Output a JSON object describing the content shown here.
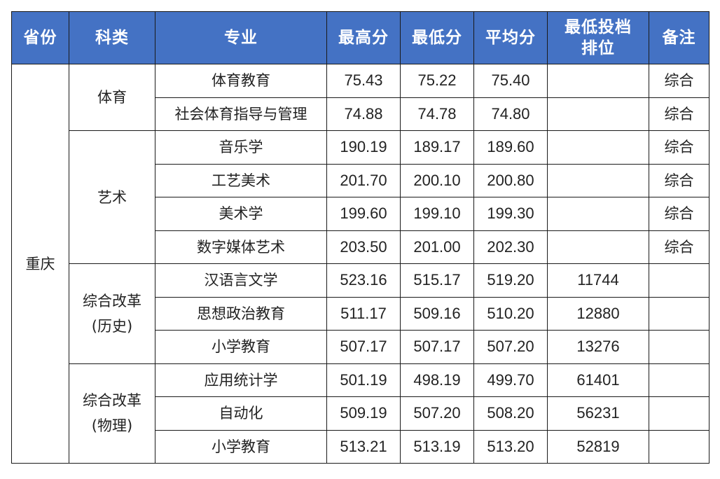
{
  "headers": [
    "省份",
    "科类",
    "专业",
    "最高分",
    "最低分",
    "平均分",
    "最低投档排位",
    "备注"
  ],
  "province": "重庆",
  "groups": [
    {
      "category": "体育",
      "rows": [
        {
          "major": "体育教育",
          "max": "75.43",
          "min": "75.22",
          "avg": "75.40",
          "rank": "",
          "note": "综合"
        },
        {
          "major": "社会体育指导与管理",
          "max": "74.88",
          "min": "74.78",
          "avg": "74.80",
          "rank": "",
          "note": "综合"
        }
      ]
    },
    {
      "category": "艺术",
      "rows": [
        {
          "major": "音乐学",
          "max": "190.19",
          "min": "189.17",
          "avg": "189.60",
          "rank": "",
          "note": "综合"
        },
        {
          "major": "工艺美术",
          "max": "201.70",
          "min": "200.10",
          "avg": "200.80",
          "rank": "",
          "note": "综合"
        },
        {
          "major": "美术学",
          "max": "199.60",
          "min": "199.10",
          "avg": "199.30",
          "rank": "",
          "note": "综合"
        },
        {
          "major": "数字媒体艺术",
          "max": "203.50",
          "min": "201.00",
          "avg": "202.30",
          "rank": "",
          "note": "综合"
        }
      ]
    },
    {
      "category": "综合改革\n(历史)",
      "rows": [
        {
          "major": "汉语言文学",
          "max": "523.16",
          "min": "515.17",
          "avg": "519.20",
          "rank": "11744",
          "note": ""
        },
        {
          "major": "思想政治教育",
          "max": "511.17",
          "min": "509.16",
          "avg": "510.20",
          "rank": "12880",
          "note": ""
        },
        {
          "major": "小学教育",
          "max": "507.17",
          "min": "507.17",
          "avg": "507.20",
          "rank": "13276",
          "note": ""
        }
      ]
    },
    {
      "category": "综合改革\n(物理)",
      "rows": [
        {
          "major": "应用统计学",
          "max": "501.19",
          "min": "498.19",
          "avg": "499.70",
          "rank": "61401",
          "note": ""
        },
        {
          "major": "自动化",
          "max": "509.19",
          "min": "507.20",
          "avg": "508.20",
          "rank": "56231",
          "note": ""
        },
        {
          "major": "小学教育",
          "max": "513.21",
          "min": "513.19",
          "avg": "513.20",
          "rank": "52819",
          "note": ""
        }
      ]
    }
  ]
}
